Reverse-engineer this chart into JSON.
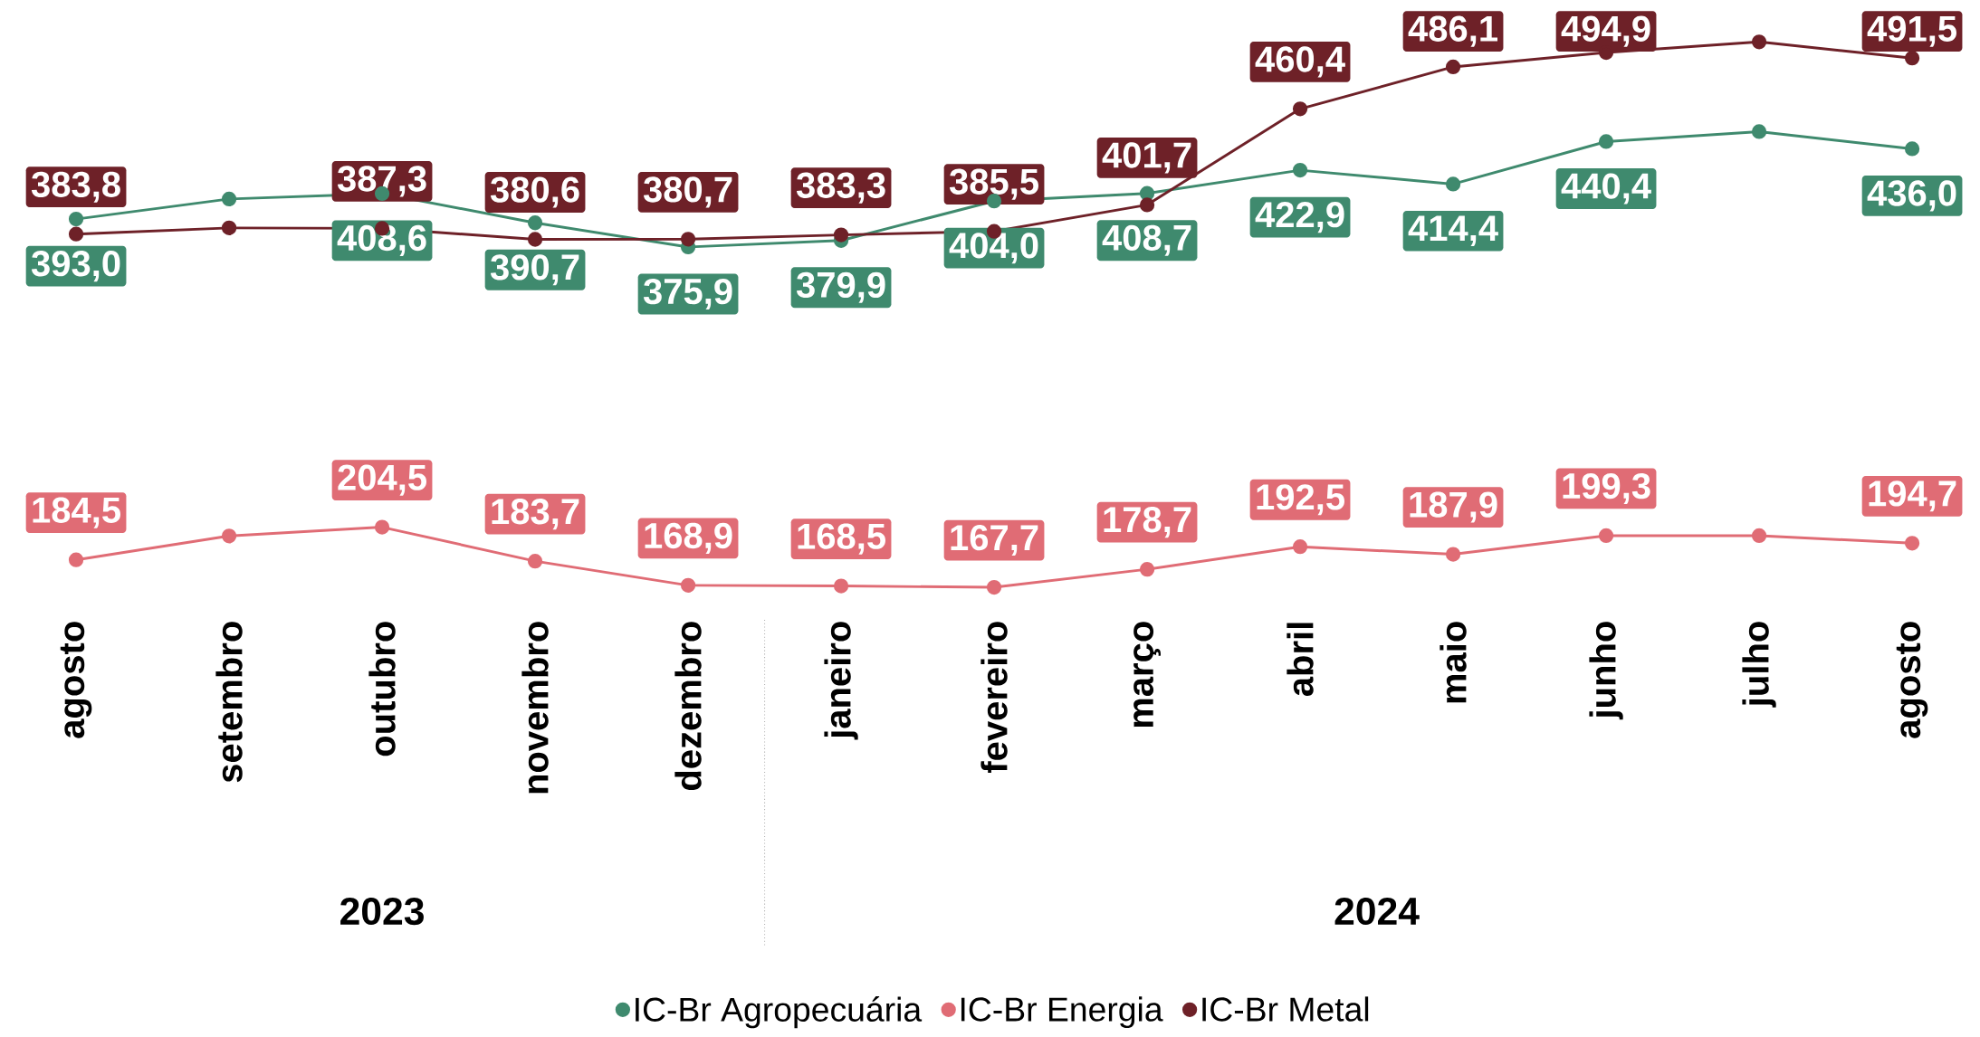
{
  "chart_data": {
    "type": "line",
    "categories": [
      "agosto",
      "setembro",
      "outubro",
      "novembro",
      "dezembro",
      "janeiro",
      "fevereiro",
      "março",
      "abril",
      "maio",
      "junho",
      "julho",
      "agosto"
    ],
    "series": [
      {
        "name": "IC-Br Agropecuária",
        "color": "#3f8a6e",
        "values": [
          393.0,
          405.3,
          408.6,
          390.7,
          375.9,
          379.9,
          404.0,
          408.7,
          422.9,
          414.4,
          440.4,
          446.5,
          436.0
        ],
        "value_labels": [
          "393,0",
          null,
          "408,6",
          "390,7",
          "375,9",
          "379,9",
          "404,0",
          "408,7",
          "422,9",
          "414,4",
          "440,4",
          null,
          "436,0"
        ]
      },
      {
        "name": "IC-Br Energia",
        "color": "#e06c75",
        "values": [
          184.5,
          199.1,
          204.5,
          183.7,
          168.9,
          168.5,
          167.7,
          178.7,
          192.5,
          187.9,
          199.3,
          199.3,
          194.7
        ],
        "value_labels": [
          "184,5",
          null,
          "204,5",
          "183,7",
          "168,9",
          "168,5",
          "167,7",
          "178,7",
          "192,5",
          "187,9",
          "199,3",
          null,
          "194,7"
        ]
      },
      {
        "name": "IC-Br Metal",
        "color": "#6e2128",
        "values": [
          383.8,
          387.6,
          387.3,
          380.6,
          380.7,
          383.3,
          385.5,
          401.7,
          460.4,
          486.1,
          494.9,
          501.4,
          491.5
        ],
        "value_labels": [
          "383,8",
          null,
          "387,3",
          "380,6",
          "380,7",
          "383,3",
          "385,5",
          "401,7",
          "460,4",
          "486,1",
          "494,9",
          null,
          "491,5"
        ]
      }
    ],
    "annotations": [
      "2023",
      "2024"
    ],
    "tick_labels": "x",
    "grid": false,
    "legend": "bottom",
    "marker": "circle",
    "line_style": "solid"
  }
}
